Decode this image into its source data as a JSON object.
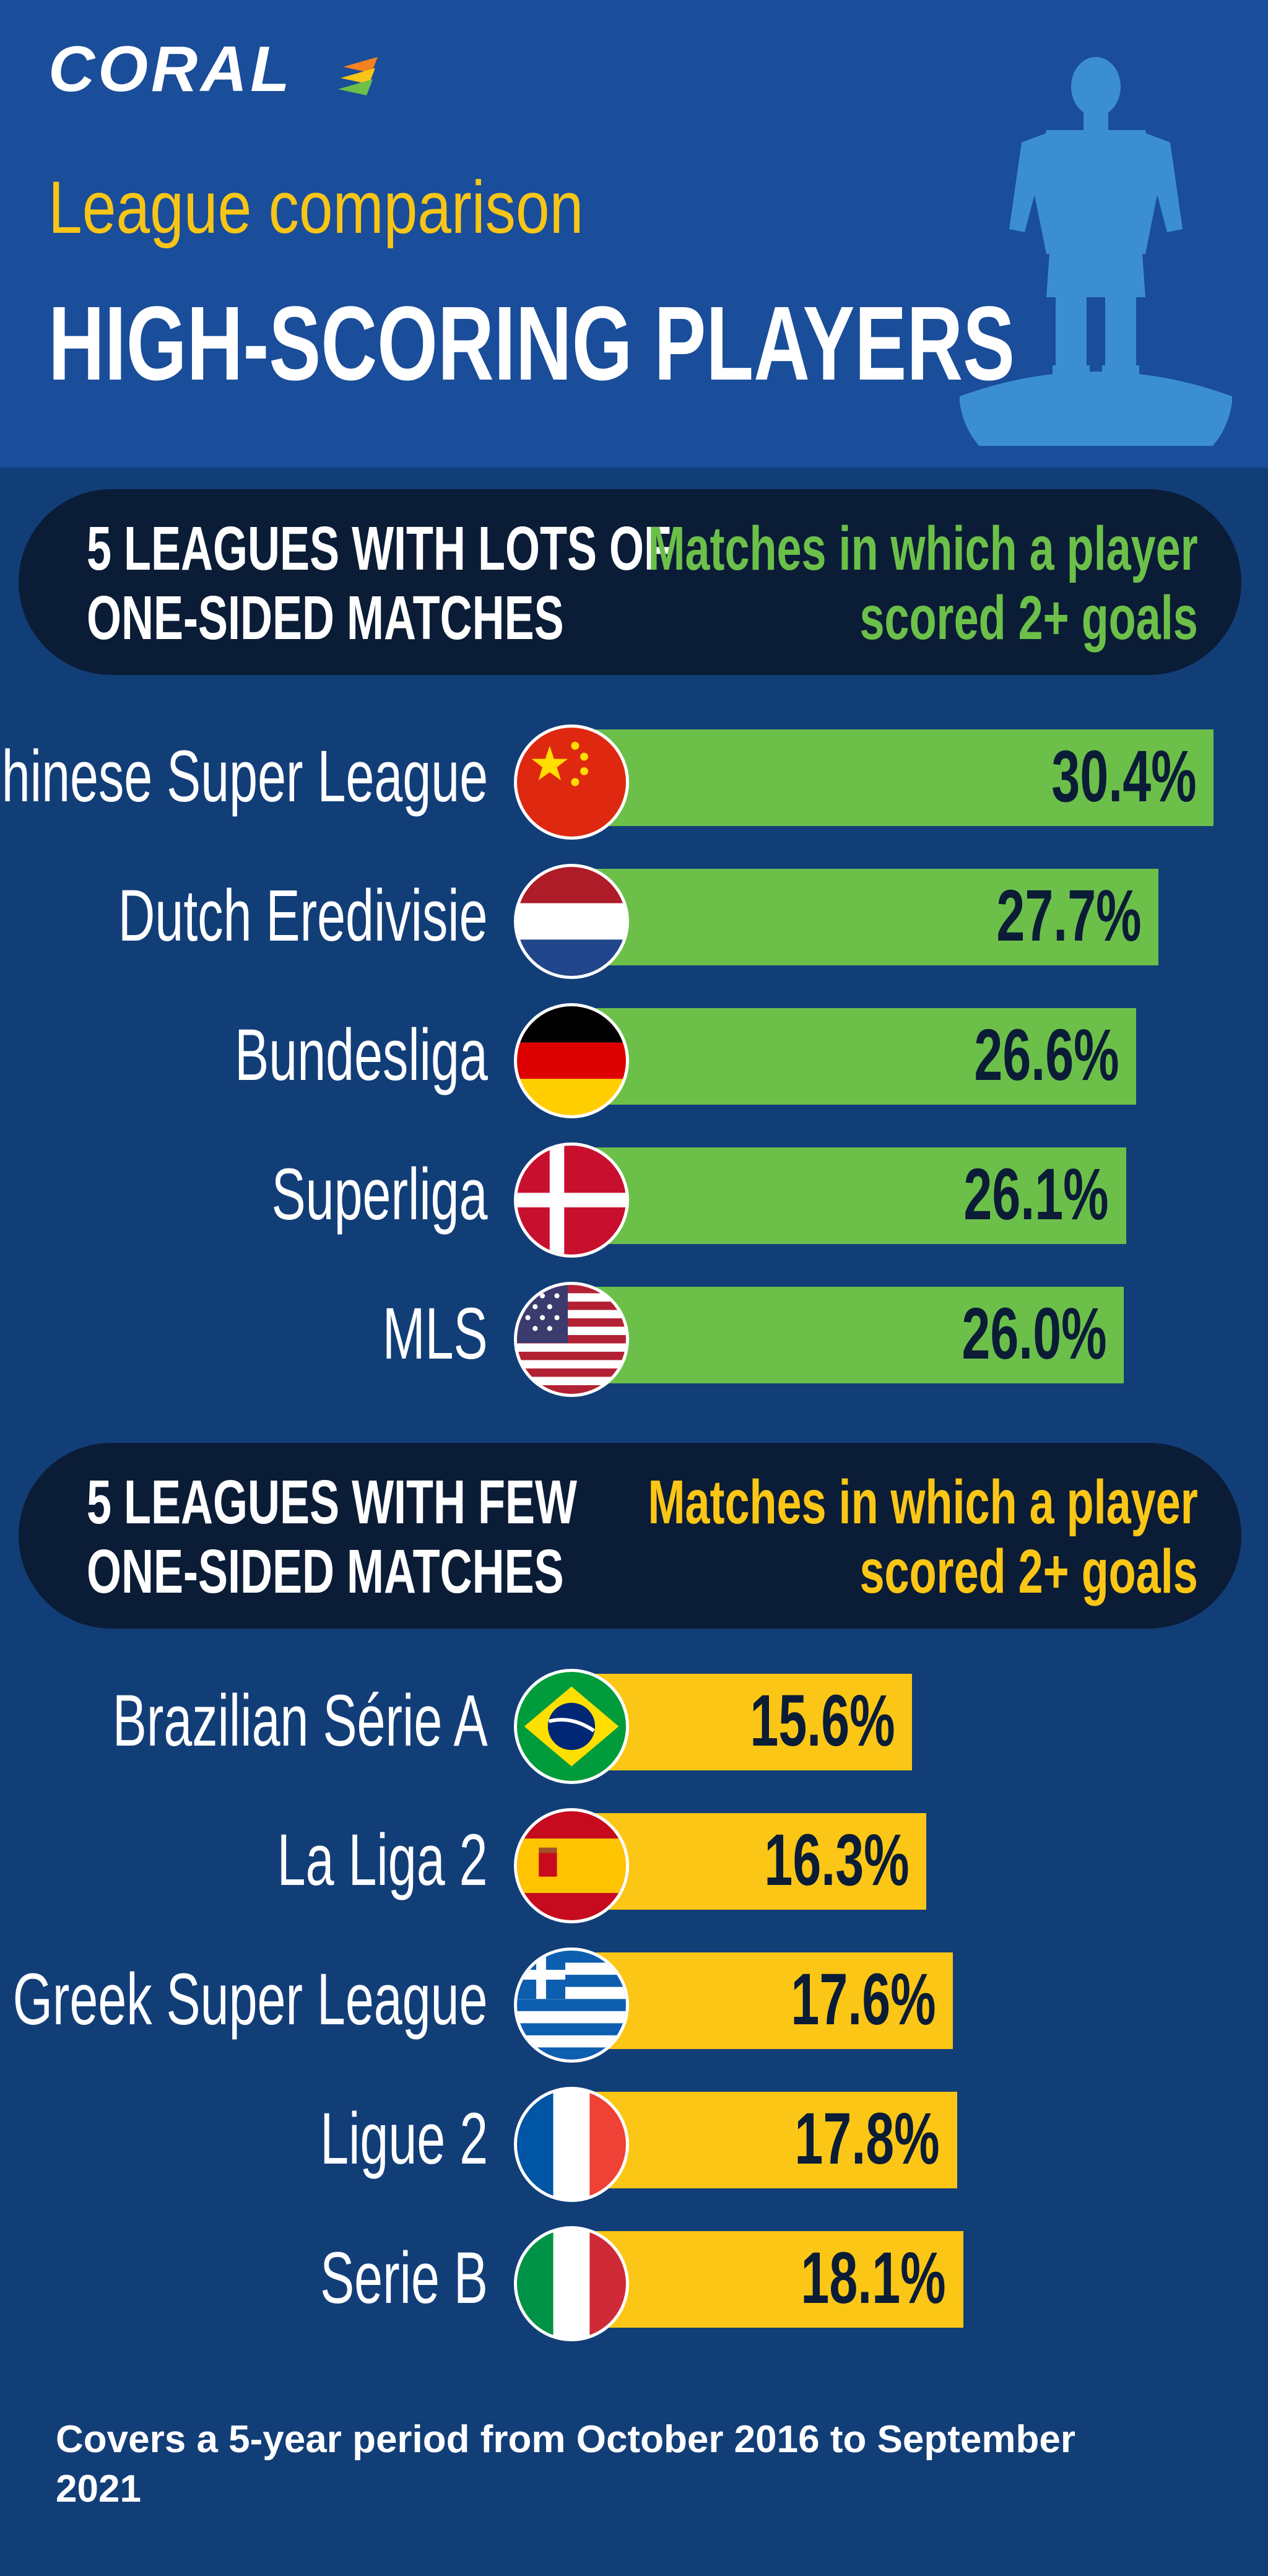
{
  "brand": {
    "name": "CORAL"
  },
  "header": {
    "subtitle": "League comparison",
    "title": "HIGH-SCORING PLAYERS"
  },
  "colors": {
    "header_bg": "#1a4d9a",
    "page_bg": "#123e78",
    "banner_bg": "#0b1c36",
    "green": "#6cc04a",
    "yellow": "#fbc615"
  },
  "sections": [
    {
      "heading_line1": "5 LEAGUES WITH LOTS OF",
      "heading_line2": "ONE-SIDED MATCHES",
      "metric_line1": "Matches in which a player",
      "metric_line2": "scored 2+ goals",
      "color": "#6cc04a"
    },
    {
      "heading_line1": "5 LEAGUES WITH FEW",
      "heading_line2": "ONE-SIDED MATCHES",
      "metric_line1": "Matches in which a player",
      "metric_line2": "scored 2+ goals",
      "color": "#fbc615"
    }
  ],
  "chart_data": [
    {
      "type": "bar",
      "orientation": "horizontal",
      "categories": [
        "Chinese Super League",
        "Dutch Eredivisie",
        "Bundesliga",
        "Superliga",
        "MLS"
      ],
      "values": [
        30.4,
        27.7,
        26.6,
        26.1,
        26.0
      ],
      "labels": [
        "30.4%",
        "27.7%",
        "26.6%",
        "26.1%",
        "26.0%"
      ],
      "flags": [
        "china",
        "netherlands",
        "germany",
        "denmark",
        "usa"
      ],
      "color": "#6cc04a",
      "xlim": [
        0,
        31
      ]
    },
    {
      "type": "bar",
      "orientation": "horizontal",
      "categories": [
        "Brazilian Série A",
        "La Liga 2",
        "Greek Super League",
        "Ligue 2",
        "Serie B"
      ],
      "values": [
        15.6,
        16.3,
        17.6,
        17.8,
        18.1
      ],
      "labels": [
        "15.6%",
        "16.3%",
        "17.6%",
        "17.8%",
        "18.1%"
      ],
      "flags": [
        "brazil",
        "spain",
        "greece",
        "france",
        "italy"
      ],
      "color": "#fbc615",
      "xlim": [
        0,
        31
      ]
    }
  ],
  "footnote": "Covers a 5-year period from October 2016 to September 2021"
}
